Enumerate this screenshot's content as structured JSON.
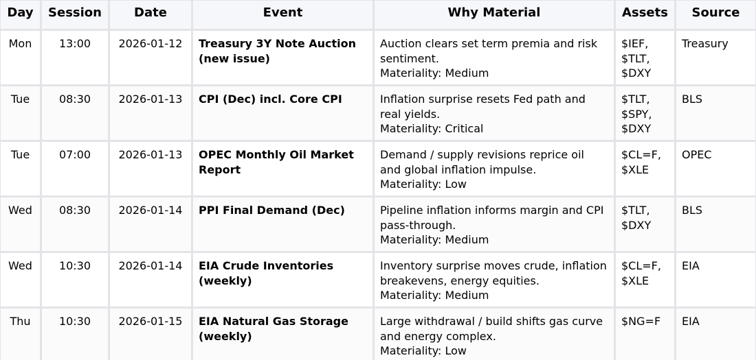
{
  "headers": [
    "Day",
    "Session",
    "Date",
    "Event",
    "Why Material",
    "Assets",
    "Source"
  ],
  "rows": [
    {
      "day": "Mon",
      "session": "13:00",
      "date": "2026-01-12",
      "event": "Treasury 3Y Note Auction (new issue)",
      "why": "Auction clears set term premia and risk sentiment.",
      "materiality": "Materiality: Medium",
      "assets": [
        "$IEF,",
        "$TLT,",
        "$DXY"
      ],
      "source": "Treasury"
    },
    {
      "day": "Tue",
      "session": "08:30",
      "date": "2026-01-13",
      "event": "CPI (Dec) incl. Core CPI",
      "why": "Inflation surprise resets Fed path and real yields.",
      "materiality": "Materiality: Critical",
      "assets": [
        "$TLT,",
        "$SPY,",
        "$DXY"
      ],
      "source": "BLS"
    },
    {
      "day": "Tue",
      "session": "07:00",
      "date": "2026-01-13",
      "event": "OPEC Monthly Oil Market Report",
      "why": "Demand / supply revisions reprice oil and global inflation impulse.",
      "materiality": "Materiality: Low",
      "assets": [
        "$CL=F,",
        "$XLE"
      ],
      "source": "OPEC"
    },
    {
      "day": "Wed",
      "session": "08:30",
      "date": "2026-01-14",
      "event": "PPI Final Demand (Dec)",
      "why": "Pipeline inflation informs margin and CPI pass-through.",
      "materiality": "Materiality: Medium",
      "assets": [
        "$TLT,",
        "$DXY"
      ],
      "source": "BLS"
    },
    {
      "day": "Wed",
      "session": "10:30",
      "date": "2026-01-14",
      "event": "EIA Crude Inventories (weekly)",
      "why": "Inventory surprise moves crude, inflation breakevens, energy equities.",
      "materiality": "Materiality: Medium",
      "assets": [
        "$CL=F,",
        "$XLE"
      ],
      "source": "EIA"
    },
    {
      "day": "Thu",
      "session": "10:30",
      "date": "2026-01-15",
      "event": "EIA Natural Gas Storage (weekly)",
      "why": "Large withdrawal / build shifts gas curve and energy complex.",
      "materiality": "Materiality: Low",
      "assets": [
        "$NG=F"
      ],
      "source": "EIA"
    }
  ]
}
